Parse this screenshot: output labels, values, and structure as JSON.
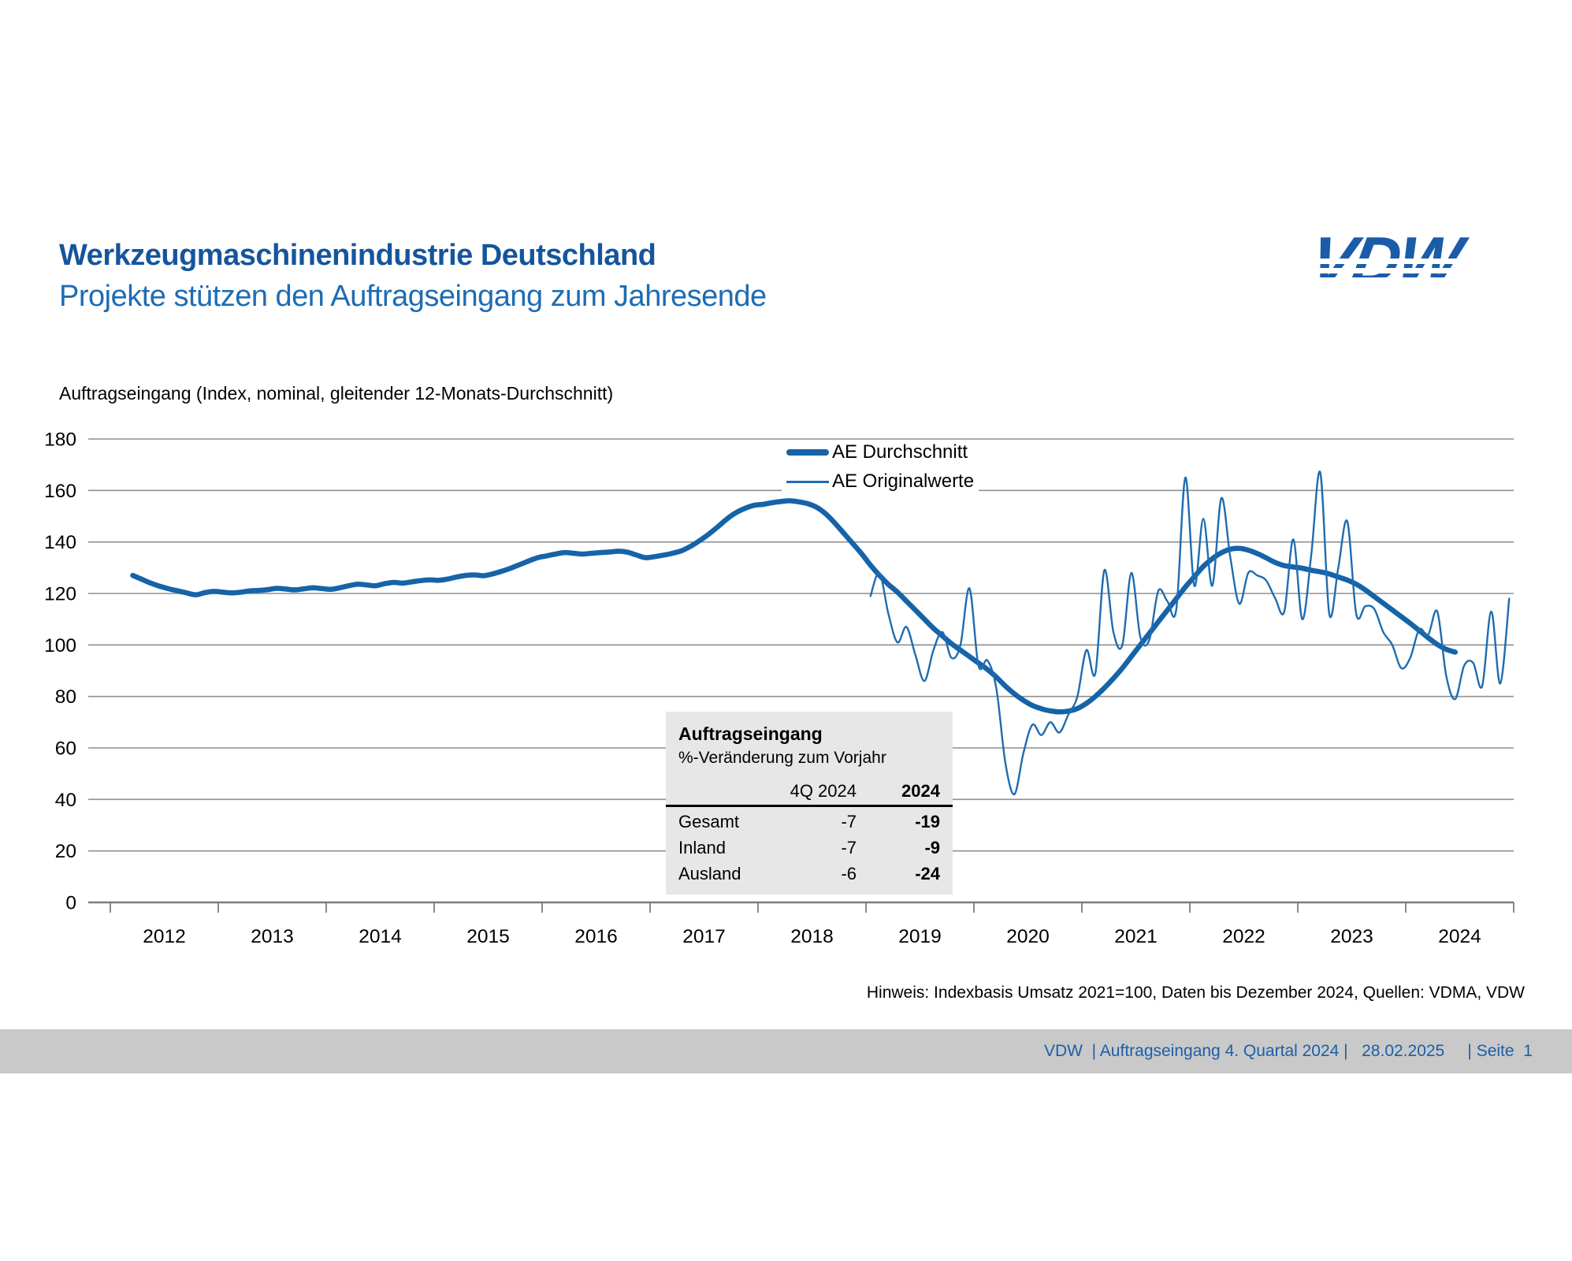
{
  "header": {
    "title": "Werkzeugmaschinenindustrie Deutschland",
    "subtitle": "Projekte stützen den Auftragseingang zum Jahresende",
    "title_color": "#15559c",
    "subtitle_color": "#1d6cb5",
    "logo_text": "VDW",
    "logo_color": "#1a5ca8"
  },
  "chart_data": {
    "type": "line",
    "title": "Auftragseingang (Index, nominal, gleitender 12-Monats-Durchschnitt)",
    "grid": true,
    "legend_position": "top-center-inside",
    "x_axis": {
      "tick_years": [
        2012,
        2013,
        2014,
        2015,
        2016,
        2017,
        2018,
        2019,
        2020,
        2021,
        2022,
        2023,
        2024
      ]
    },
    "y_axis": {
      "min": 0,
      "max": 180,
      "step": 20
    },
    "series": [
      {
        "name": "AE Durchschnitt",
        "color": "#1563a8",
        "stroke_width": 6.5,
        "start_month": "2012-03",
        "values": [
          127.0,
          125.5,
          124.0,
          122.8,
          121.8,
          121.0,
          120.2,
          119.5,
          120.3,
          120.8,
          120.5,
          120.2,
          120.5,
          121.0,
          121.2,
          121.5,
          122.0,
          121.7,
          121.4,
          121.8,
          122.2,
          121.9,
          121.6,
          122.2,
          123.0,
          123.6,
          123.3,
          123.0,
          123.8,
          124.3,
          124.0,
          124.5,
          125.0,
          125.3,
          125.1,
          125.6,
          126.4,
          127.0,
          127.2,
          126.9,
          127.6,
          128.6,
          129.8,
          131.2,
          132.6,
          133.9,
          134.6,
          135.3,
          135.9,
          135.6,
          135.3,
          135.6,
          135.9,
          136.1,
          136.4,
          136.0,
          134.9,
          133.9,
          134.3,
          134.9,
          135.6,
          136.6,
          138.3,
          140.5,
          143.0,
          145.8,
          148.8,
          151.3,
          153.0,
          154.2,
          154.6,
          155.2,
          155.7,
          156.0,
          155.6,
          154.9,
          153.5,
          151.0,
          147.5,
          143.5,
          139.5,
          135.5,
          131.0,
          127.0,
          123.5,
          120.5,
          117.0,
          113.5,
          110.0,
          106.5,
          103.5,
          100.5,
          98.0,
          95.5,
          93.0,
          90.5,
          87.5,
          84.0,
          81.0,
          78.5,
          76.5,
          75.2,
          74.4,
          74.0,
          74.3,
          75.3,
          77.3,
          80.0,
          83.3,
          87.0,
          91.0,
          95.5,
          100.0,
          104.5,
          109.0,
          113.5,
          118.0,
          122.5,
          126.5,
          130.5,
          133.5,
          135.8,
          137.2,
          137.5,
          136.8,
          135.5,
          133.8,
          132.0,
          130.8,
          130.3,
          129.8,
          129.0,
          128.4,
          127.6,
          126.4,
          125.2,
          123.6,
          121.4,
          118.8,
          116.2,
          113.6,
          111.0,
          108.4,
          105.6,
          102.8,
          100.2,
          98.3,
          97.2
        ]
      },
      {
        "name": "AE Originalwerte",
        "color": "#1f6cb0",
        "stroke_width": 2.4,
        "start_month": "2019-01",
        "values": [
          119,
          128,
          112,
          101,
          107,
          96,
          86,
          98,
          105,
          95,
          100,
          122,
          92,
          94,
          83,
          54,
          42,
          58,
          69,
          65,
          70,
          66,
          73,
          80,
          98,
          89,
          129,
          105,
          100,
          128,
          103,
          102,
          121,
          117,
          114,
          165,
          123,
          149,
          123,
          157,
          134,
          116,
          128,
          127,
          125,
          118,
          113,
          141,
          110,
          135,
          167,
          112,
          130,
          148,
          112,
          115,
          114,
          105,
          100,
          91,
          95,
          106,
          104,
          113,
          88,
          79,
          92,
          93,
          84,
          113,
          85,
          118
        ]
      }
    ]
  },
  "inset_table": {
    "title": "Auftragseingang",
    "subtitle": "%-Veränderung zum Vorjahr",
    "col_quarter": "4Q 2024",
    "col_year": "2024",
    "rows": [
      {
        "label": "Gesamt",
        "quarter": "-7",
        "year": "-19"
      },
      {
        "label": "Inland",
        "quarter": "-7",
        "year": "-9"
      },
      {
        "label": "Ausland",
        "quarter": "-6",
        "year": "-24"
      }
    ],
    "bg_color": "#e7e7e7"
  },
  "footnote": "Hinweis: Indexbasis Umsatz 2021=100, Daten bis Dezember 2024, Quellen: VDMA, VDW",
  "footer": {
    "text": "VDW  | Auftragseingang 4. Quartal 2024 |   28.02.2025     | Seite  1",
    "bar_color": "#c9c9c9",
    "text_color": "#1c5fa8"
  }
}
